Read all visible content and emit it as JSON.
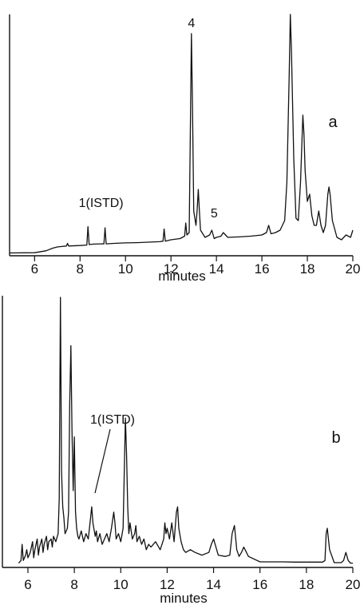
{
  "chart_data": [
    {
      "type": "line",
      "panel_label": "a",
      "title": "",
      "xlabel": "minutes",
      "ylabel": "",
      "xlim": [
        4.9,
        20
      ],
      "x_ticks": [
        6,
        8,
        10,
        12,
        14,
        16,
        18,
        20
      ],
      "peak_labels": [
        {
          "text": "4",
          "x": 12.9
        },
        {
          "text": "1(ISTD)",
          "x": 9.1
        },
        {
          "text": "5",
          "x": 13.9
        }
      ],
      "series": [
        {
          "x": [
            4.9,
            6.0,
            6.5,
            6.8,
            7.0,
            7.2,
            7.4,
            7.45,
            7.5,
            8.0,
            8.3,
            8.35,
            8.4,
            8.6,
            9.05,
            9.1,
            9.15,
            9.5,
            10.0,
            10.5,
            11.0,
            11.5,
            11.65,
            11.7,
            11.75,
            12.0,
            12.4,
            12.6,
            12.65,
            12.7,
            12.8,
            12.85,
            12.9,
            12.95,
            13.0,
            13.1,
            13.15,
            13.2,
            13.25,
            13.3,
            13.5,
            13.7,
            13.8,
            13.9,
            14.0,
            14.2,
            14.3,
            14.5,
            15.0,
            15.5,
            16.0,
            16.2,
            16.3,
            16.4,
            16.6,
            16.8,
            17.0,
            17.1,
            17.2,
            17.25,
            17.3,
            17.4,
            17.5,
            17.6,
            17.7,
            17.8,
            17.85,
            17.9,
            18.0,
            18.1,
            18.2,
            18.3,
            18.4,
            18.5,
            18.6,
            18.7,
            18.8,
            18.9,
            18.95,
            19.0,
            19.1,
            19.3,
            19.5,
            19.7,
            19.9,
            20.0
          ],
          "y": [
            0.5,
            0.6,
            1.4,
            2.5,
            3.0,
            3.2,
            3.4,
            4.5,
            3.4,
            3.6,
            3.8,
            11.5,
            4.0,
            4.2,
            4.3,
            11.0,
            4.3,
            4.5,
            4.7,
            4.8,
            5.0,
            5.2,
            5.4,
            10.5,
            5.4,
            6.0,
            6.5,
            7.5,
            13.0,
            8.0,
            9.0,
            50.0,
            92.0,
            60.0,
            18.0,
            12.0,
            18.0,
            27.0,
            18.0,
            10.0,
            7.0,
            8.0,
            10.0,
            6.5,
            7.0,
            7.5,
            9.0,
            7.0,
            7.2,
            7.5,
            8.0,
            9.0,
            12.0,
            8.5,
            9.0,
            10.0,
            14.0,
            30.0,
            75.0,
            100.0,
            85.0,
            40.0,
            15.0,
            14.0,
            30.0,
            58.0,
            50.0,
            35.0,
            22.0,
            25.0,
            16.0,
            12.0,
            12.0,
            18.0,
            12.0,
            9.0,
            12.0,
            25.0,
            28.0,
            25.0,
            14.0,
            7.0,
            6.0,
            8.0,
            7.0,
            10.0
          ]
        }
      ]
    },
    {
      "type": "line",
      "panel_label": "b",
      "title": "",
      "xlabel": "minutes",
      "ylabel": "",
      "xlim": [
        4.9,
        20
      ],
      "x_ticks": [
        6,
        8,
        10,
        12,
        14,
        16,
        18,
        20
      ],
      "peak_labels": [
        {
          "text": "1(ISTD)",
          "x": 9.0
        }
      ],
      "series": [
        {
          "x": [
            5.6,
            5.7,
            5.75,
            5.8,
            5.9,
            5.95,
            6.0,
            6.1,
            6.2,
            6.25,
            6.3,
            6.4,
            6.45,
            6.5,
            6.6,
            6.65,
            6.7,
            6.8,
            6.85,
            6.9,
            7.0,
            7.05,
            7.1,
            7.2,
            7.3,
            7.35,
            7.4,
            7.45,
            7.5,
            7.55,
            7.6,
            7.7,
            7.75,
            7.8,
            7.85,
            7.9,
            7.95,
            8.0,
            8.05,
            8.1,
            8.15,
            8.2,
            8.3,
            8.4,
            8.5,
            8.6,
            8.7,
            8.75,
            8.8,
            8.9,
            8.95,
            9.0,
            9.1,
            9.2,
            9.3,
            9.4,
            9.5,
            9.6,
            9.7,
            9.75,
            9.8,
            9.9,
            10.0,
            10.1,
            10.2,
            10.25,
            10.3,
            10.35,
            10.4,
            10.5,
            10.6,
            10.65,
            10.7,
            10.8,
            10.9,
            11.0,
            11.1,
            11.2,
            11.3,
            11.5,
            11.7,
            11.85,
            11.9,
            11.95,
            12.0,
            12.1,
            12.2,
            12.3,
            12.4,
            12.45,
            12.5,
            12.6,
            12.7,
            12.8,
            13.0,
            13.2,
            13.5,
            13.8,
            13.9,
            14.0,
            14.2,
            14.5,
            14.7,
            14.8,
            14.9,
            15.0,
            15.1,
            15.2,
            15.3,
            15.5,
            16.0,
            16.5,
            17.0,
            17.5,
            18.0,
            18.5,
            18.7,
            18.8,
            18.85,
            18.9,
            19.0,
            19.2,
            19.5,
            19.6,
            19.7,
            19.8,
            19.9,
            20.0
          ],
          "y": [
            1.0,
            2.0,
            8.0,
            2.0,
            4.0,
            6.0,
            3.0,
            5.0,
            9.0,
            3.0,
            6.0,
            10.0,
            4.0,
            7.0,
            10.0,
            5.0,
            8.0,
            11.0,
            6.0,
            9.0,
            10.0,
            7.0,
            11.0,
            9.0,
            12.0,
            25.0,
            100.0,
            35.0,
            22.0,
            18.0,
            12.0,
            14.0,
            20.0,
            60.0,
            82.0,
            50.0,
            28.0,
            48.0,
            20.0,
            14.0,
            11.0,
            10.0,
            13.0,
            9.0,
            12.0,
            10.0,
            18.0,
            22.0,
            16.0,
            11.0,
            13.0,
            9.0,
            12.0,
            8.0,
            10.0,
            12.0,
            9.0,
            14.0,
            20.0,
            16.0,
            10.0,
            12.0,
            9.0,
            14.0,
            55.0,
            42.0,
            22.0,
            12.0,
            16.0,
            10.0,
            12.0,
            15.0,
            9.0,
            11.0,
            8.0,
            10.0,
            6.0,
            8.0,
            7.0,
            9.0,
            6.0,
            10.0,
            16.0,
            12.0,
            14.0,
            10.0,
            16.0,
            9.0,
            20.0,
            22.0,
            14.0,
            9.0,
            6.0,
            5.0,
            6.0,
            5.0,
            4.0,
            5.0,
            8.0,
            10.0,
            4.0,
            3.5,
            4.0,
            12.0,
            15.0,
            6.0,
            3.5,
            5.0,
            7.0,
            3.5,
            1.5,
            1.5,
            1.5,
            1.4,
            1.4,
            1.4,
            1.4,
            2.0,
            12.0,
            14.0,
            6.0,
            1.2,
            1.2,
            2.0,
            5.0,
            2.0,
            1.0,
            1.0
          ]
        }
      ]
    }
  ]
}
